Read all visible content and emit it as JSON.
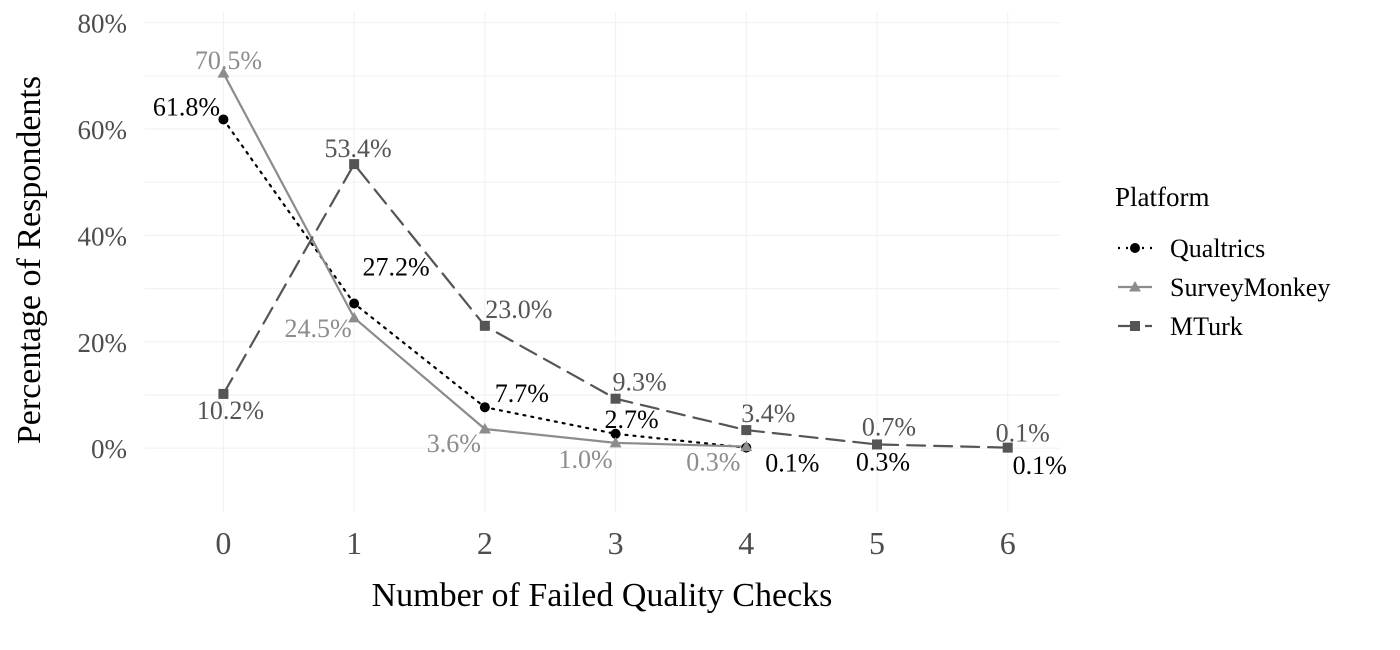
{
  "chart_data": {
    "type": "line",
    "title": "",
    "xlabel": "Number of Failed Quality Checks",
    "ylabel": "Percentage of Respondents",
    "x": [
      0,
      1,
      2,
      3,
      4,
      5,
      6
    ],
    "x_tick_labels": [
      "0",
      "1",
      "2",
      "3",
      "4",
      "5",
      "6"
    ],
    "ylim": [
      -0.12,
      0.82
    ],
    "y_ticks": [
      0,
      0.2,
      0.4,
      0.6,
      0.8
    ],
    "y_tick_labels": [
      "0%",
      "20%",
      "40%",
      "60%",
      "80%"
    ],
    "grid": true,
    "legend": {
      "title": "Platform",
      "position": "right"
    },
    "series": [
      {
        "name": "Qualtrics",
        "color": "#000000",
        "line_style": "dotted",
        "marker": "circle",
        "x": [
          0,
          1,
          2,
          3,
          4
        ],
        "values": [
          0.618,
          0.272,
          0.077,
          0.027,
          0.001
        ],
        "labels": [
          "61.8%",
          "27.2%",
          "7.7%",
          "2.7%",
          "0.1%"
        ]
      },
      {
        "name": "SurveyMonkey",
        "color": "#8c8c8c",
        "line_style": "solid",
        "marker": "triangle",
        "x": [
          0,
          1,
          2,
          3,
          4
        ],
        "values": [
          0.705,
          0.245,
          0.036,
          0.01,
          0.003
        ],
        "labels": [
          "70.5%",
          "24.5%",
          "3.6%",
          "1.0%",
          "0.3%"
        ]
      },
      {
        "name": "MTurk",
        "color": "#555555",
        "line_style": "dashed",
        "marker": "square",
        "x": [
          0,
          1,
          2,
          3,
          4,
          5,
          6
        ],
        "values": [
          0.102,
          0.534,
          0.23,
          0.093,
          0.034,
          0.007,
          0.001
        ],
        "labels": [
          "10.2%",
          "53.4%",
          "23.0%",
          "9.3%",
          "3.4%",
          "0.7%",
          "0.1%"
        ]
      }
    ],
    "extra_labels": [
      {
        "text": "0.3%",
        "x": 5,
        "y": 0.003,
        "color": "#000000"
      },
      {
        "text": "0.1%",
        "x": 6,
        "y": 0.0,
        "color": "#000000"
      }
    ]
  }
}
